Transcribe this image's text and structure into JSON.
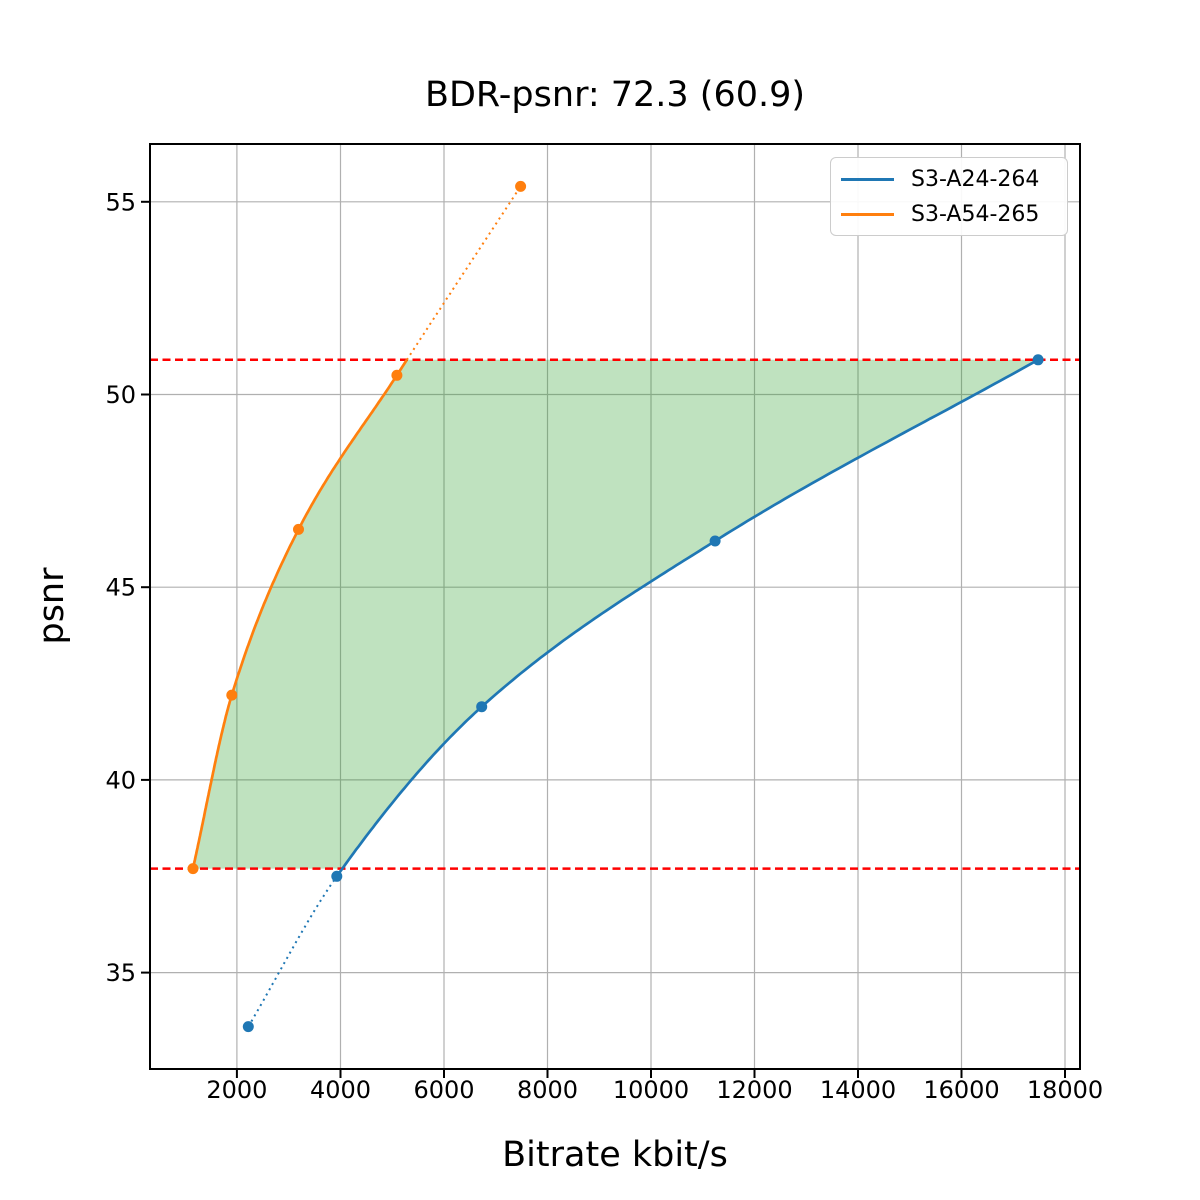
{
  "chart_data": {
    "type": "line",
    "title": "BDR-psnr: 72.3 (60.9)",
    "xlabel": "Bitrate kbit/s",
    "ylabel": "psnr",
    "xlim": [
      320,
      18290
    ],
    "ylim": [
      32.5,
      56.5
    ],
    "x_ticks": [
      2000,
      4000,
      6000,
      8000,
      10000,
      12000,
      14000,
      16000,
      18000
    ],
    "y_ticks": [
      35,
      40,
      45,
      50,
      55
    ],
    "grid": true,
    "grid_color": "#b0b0b0",
    "legend_position": "upper right",
    "series": [
      {
        "name": "S3-A24-264",
        "color": "#1f77b4",
        "marker": "circle",
        "x": [
          2220,
          3930,
          6730,
          11240,
          17480
        ],
        "y": [
          33.6,
          37.5,
          41.9,
          46.2,
          50.9
        ],
        "dotted_part": "below second point"
      },
      {
        "name": "S3-A54-265",
        "color": "#ff7f0e",
        "marker": "circle",
        "x": [
          1150,
          1900,
          3190,
          5090,
          7480
        ],
        "y": [
          37.7,
          42.2,
          46.5,
          50.5,
          55.4
        ],
        "dotted_part": "above upper overlap line"
      }
    ],
    "overlap_lines": {
      "y_values": [
        37.7,
        50.9
      ],
      "color": "#ff0000",
      "style": "dashed"
    },
    "shaded_overlap_area": {
      "fill": "#2ca02c",
      "alpha": 0.3
    }
  }
}
